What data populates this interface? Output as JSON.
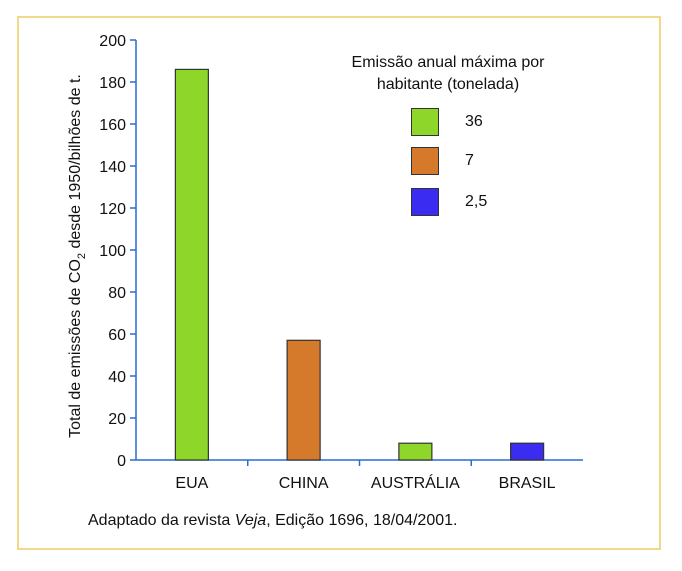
{
  "chart_data": {
    "type": "bar",
    "categories": [
      "EUA",
      "CHINA",
      "AUSTRÁLIA",
      "BRASIL"
    ],
    "values": [
      186,
      57,
      8,
      8
    ],
    "bar_colors": [
      "#8fd62a",
      "#d47a2a",
      "#8fd62a",
      "#3a2cf0"
    ],
    "ylabel_prefix": "Total de emissões de CO",
    "ylabel_sub": "2",
    "ylabel_suffix": " desde 1950/bilhões de t.",
    "yticks": [
      0,
      20,
      40,
      60,
      80,
      100,
      120,
      140,
      160,
      180,
      200
    ],
    "ylim": [
      0,
      200
    ],
    "legend": {
      "title_line1": "Emissão anual máxima por",
      "title_line2": "habitante (tonelada)",
      "items": [
        {
          "label": "36",
          "color": "#8fd62a"
        },
        {
          "label": "7",
          "color": "#d47a2a"
        },
        {
          "label": "2,5",
          "color": "#3a2cf0"
        }
      ]
    },
    "axis_color": "#2a6ccf"
  },
  "source": {
    "prefix": "Adaptado da revista ",
    "italic": "Veja",
    "suffix": ", Edição 1696, 18/04/2001."
  }
}
